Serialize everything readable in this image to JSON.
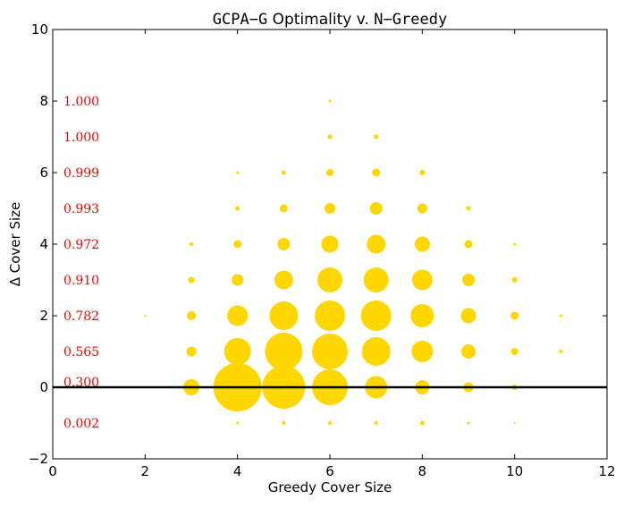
{
  "chart_data": {
    "type": "scatter",
    "title": {
      "prefix": "GCPA−G",
      "middle": " Optimality v. ",
      "suffix": "N−Greedy"
    },
    "xlabel": "Greedy Cover Size",
    "ylabel": "Δ Cover Size",
    "xlim": [
      0,
      12
    ],
    "ylim": [
      -2,
      10
    ],
    "xticks": [
      0,
      2,
      4,
      6,
      8,
      10,
      12
    ],
    "yticks": [
      -2,
      0,
      2,
      4,
      6,
      8,
      10
    ],
    "grid": false,
    "marker_color": "#FFD700",
    "reference_line_y": 0,
    "reference_line_color": "#000000",
    "annotation_color": "#FF0000",
    "annotations": [
      {
        "y": 8,
        "text": "1.000"
      },
      {
        "y": 7,
        "text": "1.000"
      },
      {
        "y": 6,
        "text": "0.999"
      },
      {
        "y": 5,
        "text": "0.993"
      },
      {
        "y": 4,
        "text": "0.972"
      },
      {
        "y": 3,
        "text": "0.910"
      },
      {
        "y": 2,
        "text": "0.782"
      },
      {
        "y": 1,
        "text": "0.565"
      },
      {
        "y": 0.15,
        "text": "0.300"
      },
      {
        "y": -1,
        "text": "0.002"
      }
    ],
    "points": [
      {
        "x": 2,
        "y": 2,
        "r": 1
      },
      {
        "x": 3,
        "y": 0,
        "r": 9
      },
      {
        "x": 3,
        "y": 1,
        "r": 5.5
      },
      {
        "x": 3,
        "y": 2,
        "r": 5
      },
      {
        "x": 3,
        "y": 3,
        "r": 3.5
      },
      {
        "x": 3,
        "y": 4,
        "r": 2
      },
      {
        "x": 4,
        "y": -1,
        "r": 1.5
      },
      {
        "x": 4,
        "y": 0,
        "r": 27
      },
      {
        "x": 4,
        "y": 1,
        "r": 15
      },
      {
        "x": 4,
        "y": 2,
        "r": 11.5
      },
      {
        "x": 4,
        "y": 3,
        "r": 6.5
      },
      {
        "x": 4,
        "y": 4,
        "r": 4.5
      },
      {
        "x": 4,
        "y": 5,
        "r": 2.5
      },
      {
        "x": 4,
        "y": 6,
        "r": 1.5
      },
      {
        "x": 5,
        "y": -1,
        "r": 2
      },
      {
        "x": 5,
        "y": 0,
        "r": 24
      },
      {
        "x": 5,
        "y": 1,
        "r": 21
      },
      {
        "x": 5,
        "y": 2,
        "r": 16
      },
      {
        "x": 5,
        "y": 3,
        "r": 10.5
      },
      {
        "x": 5,
        "y": 4,
        "r": 7
      },
      {
        "x": 5,
        "y": 5,
        "r": 4.5
      },
      {
        "x": 5,
        "y": 6,
        "r": 2.5
      },
      {
        "x": 6,
        "y": -1,
        "r": 2
      },
      {
        "x": 6,
        "y": 0,
        "r": 20
      },
      {
        "x": 6,
        "y": 1,
        "r": 20
      },
      {
        "x": 6,
        "y": 2,
        "r": 17
      },
      {
        "x": 6,
        "y": 3,
        "r": 14
      },
      {
        "x": 6,
        "y": 4,
        "r": 9.5
      },
      {
        "x": 6,
        "y": 5,
        "r": 6
      },
      {
        "x": 6,
        "y": 6,
        "r": 4
      },
      {
        "x": 6,
        "y": 7,
        "r": 2.5
      },
      {
        "x": 6,
        "y": 8,
        "r": 1.5
      },
      {
        "x": 7,
        "y": -1,
        "r": 2
      },
      {
        "x": 7,
        "y": 0,
        "r": 12.5
      },
      {
        "x": 7,
        "y": 1,
        "r": 16
      },
      {
        "x": 7,
        "y": 2,
        "r": 17
      },
      {
        "x": 7,
        "y": 3,
        "r": 14
      },
      {
        "x": 7,
        "y": 4,
        "r": 10.5
      },
      {
        "x": 7,
        "y": 5,
        "r": 7
      },
      {
        "x": 7,
        "y": 6,
        "r": 4.5
      },
      {
        "x": 7,
        "y": 7,
        "r": 2.5
      },
      {
        "x": 8,
        "y": -1,
        "r": 2.5
      },
      {
        "x": 8,
        "y": 0,
        "r": 8
      },
      {
        "x": 8,
        "y": 1,
        "r": 12
      },
      {
        "x": 8,
        "y": 2,
        "r": 13
      },
      {
        "x": 8,
        "y": 3,
        "r": 11.5
      },
      {
        "x": 8,
        "y": 4,
        "r": 8.5
      },
      {
        "x": 8,
        "y": 5,
        "r": 5.5
      },
      {
        "x": 8,
        "y": 6,
        "r": 3
      },
      {
        "x": 9,
        "y": -1,
        "r": 1.5
      },
      {
        "x": 9,
        "y": 0,
        "r": 5.5
      },
      {
        "x": 9,
        "y": 1,
        "r": 8
      },
      {
        "x": 9,
        "y": 2,
        "r": 8.5
      },
      {
        "x": 9,
        "y": 3,
        "r": 7
      },
      {
        "x": 9,
        "y": 4,
        "r": 4.5
      },
      {
        "x": 9,
        "y": 5,
        "r": 2.5
      },
      {
        "x": 10,
        "y": -1,
        "r": 1
      },
      {
        "x": 10,
        "y": 0,
        "r": 3
      },
      {
        "x": 10,
        "y": 1,
        "r": 4
      },
      {
        "x": 10,
        "y": 2,
        "r": 4.5
      },
      {
        "x": 10,
        "y": 3,
        "r": 3
      },
      {
        "x": 10,
        "y": 4,
        "r": 1.5
      },
      {
        "x": 11,
        "y": 1,
        "r": 2
      },
      {
        "x": 11,
        "y": 2,
        "r": 1.5
      }
    ]
  }
}
